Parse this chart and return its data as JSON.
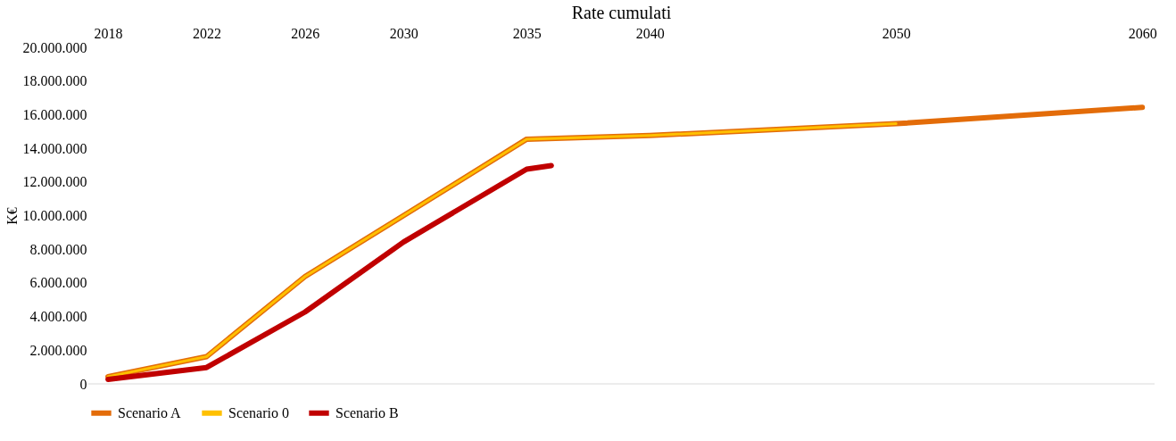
{
  "chart_data": {
    "type": "line",
    "title": "Rate cumulati",
    "ylabel": "K€",
    "xlim": [
      2017.2,
      2060.5
    ],
    "xticks": [
      2018,
      2022,
      2026,
      2030,
      2035,
      2040,
      2050,
      2060
    ],
    "ylim": [
      0,
      20000000
    ],
    "yticks": [
      {
        "value": 0,
        "label": "0"
      },
      {
        "value": 2000000,
        "label": "2.000.000"
      },
      {
        "value": 4000000,
        "label": "4.000.000"
      },
      {
        "value": 6000000,
        "label": "6.000.000"
      },
      {
        "value": 8000000,
        "label": "8.000.000"
      },
      {
        "value": 10000000,
        "label": "10.000.000"
      },
      {
        "value": 12000000,
        "label": "12.000.000"
      },
      {
        "value": 14000000,
        "label": "14.000.000"
      },
      {
        "value": 16000000,
        "label": "16.000.000"
      },
      {
        "value": 18000000,
        "label": "18.000.000"
      },
      {
        "value": 20000000,
        "label": "20.000.000"
      }
    ],
    "series": [
      {
        "name": "Scenario A",
        "color": "#e36c09",
        "x": [
          2018,
          2022,
          2026,
          2030,
          2035,
          2040,
          2050,
          2060
        ],
        "values": [
          430000,
          1620000,
          6380000,
          10000000,
          14540000,
          14760000,
          15460000,
          16430000
        ]
      },
      {
        "name": "Scenario 0",
        "color": "#ffc000",
        "x": [
          2018,
          2022,
          2026,
          2030,
          2035,
          2040,
          2050
        ],
        "values": [
          430000,
          1620000,
          6380000,
          10000000,
          14540000,
          14760000,
          15460000
        ]
      },
      {
        "name": "Scenario B",
        "color": "#c00000",
        "x": [
          2018,
          2022,
          2026,
          2030,
          2035,
          2036
        ],
        "values": [
          270000,
          970000,
          4270000,
          8430000,
          12760000,
          12970000
        ]
      }
    ],
    "legend": "bottom",
    "grid": false,
    "marker": "none",
    "line_style": "solid"
  }
}
